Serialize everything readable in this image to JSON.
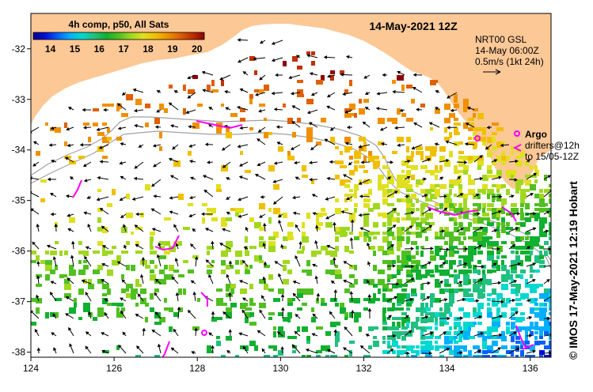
{
  "map": {
    "title": "14-May-2021 12Z",
    "colorbar": {
      "title": "4h comp, p50, All Sats",
      "ticks": [
        "14",
        "15",
        "16",
        "17",
        "18",
        "19",
        "20"
      ],
      "range": [
        13.3,
        20.3
      ],
      "colors": [
        "#00008c",
        "#0010d8",
        "#0060ff",
        "#00b0ff",
        "#00d8d0",
        "#20c080",
        "#10b030",
        "#50c020",
        "#a0d820",
        "#e0e020",
        "#f0c000",
        "#f09000",
        "#e06000",
        "#c03000",
        "#900000"
      ]
    },
    "current_source": {
      "line1": "NRT00 GSL",
      "line2": "14-May 06:00Z",
      "line3": "0.5m/s (1kt 24h)"
    },
    "legend": {
      "argo": "Argo",
      "drifters_line1": "drifters@12h",
      "drifters_line2": "to 15/05-12Z",
      "argo_color": "#ff00ff"
    },
    "credit": "© IMOS 17-May-2021 12:19 Hobart",
    "axes": {
      "x_ticks": [
        "124",
        "126",
        "128",
        "130",
        "132",
        "134",
        "136"
      ],
      "y_ticks": [
        "-32",
        "-33",
        "-34",
        "-35",
        "-36",
        "-37",
        "-38"
      ],
      "lon_range": [
        124,
        136.5
      ],
      "lat_range": [
        -31.3,
        -38.1
      ]
    },
    "land_color": "#fcc896"
  }
}
